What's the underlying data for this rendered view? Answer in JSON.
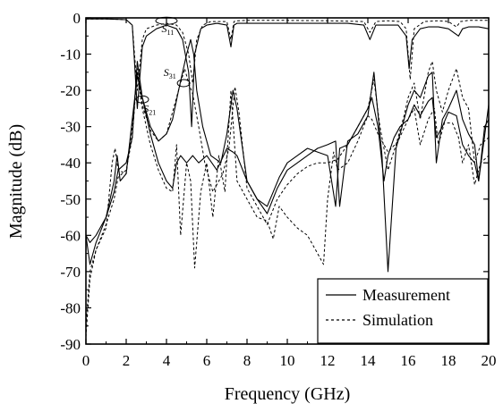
{
  "chart_data": {
    "type": "line",
    "title": "",
    "xlabel": "Frequency (GHz)",
    "ylabel": "Magnitude (dB)",
    "xlim": [
      0,
      20
    ],
    "ylim": [
      -90,
      0
    ],
    "xticks": [
      0,
      2,
      4,
      6,
      8,
      10,
      12,
      14,
      16,
      18,
      20
    ],
    "yticks": [
      0,
      -10,
      -20,
      -30,
      -40,
      -50,
      -60,
      -70,
      -80,
      -90
    ],
    "grid": false,
    "legend_position": "bottom-right",
    "legend": [
      {
        "label": "Measurement",
        "style": "solid"
      },
      {
        "label": "Simulation",
        "style": "dashed"
      }
    ],
    "annotations": [
      {
        "main": "S",
        "sub": "11",
        "x": 4.2,
        "y": -3
      },
      {
        "main": "S",
        "sub": "31",
        "x": 4.3,
        "y": -15
      },
      {
        "main": "S",
        "sub": "21",
        "x": 3.3,
        "y": -25
      }
    ],
    "series": [
      {
        "name": "S11",
        "style": "solid",
        "x": [
          0,
          1,
          2,
          2.3,
          2.55,
          2.8,
          3,
          3.5,
          4,
          4.5,
          4.8,
          5.1,
          5.25,
          5.4,
          5.7,
          6,
          6.5,
          7,
          7.2,
          7.35,
          7.5,
          8,
          9,
          10,
          11,
          12,
          13,
          13.8,
          14.1,
          14.4,
          15,
          15.5,
          15.9,
          16.05,
          16.2,
          16.6,
          17,
          17.5,
          18,
          18.5,
          18.7,
          19,
          19.5,
          20
        ],
        "y": [
          -0.3,
          -0.3,
          -0.5,
          -2,
          -25,
          -8,
          -5,
          -3,
          -2,
          -3,
          -6,
          -15,
          -30,
          -10,
          -3,
          -2,
          -1.5,
          -2,
          -8,
          -2,
          -1.5,
          -1.5,
          -1.5,
          -1.5,
          -1.5,
          -1.5,
          -1.5,
          -2,
          -6,
          -2,
          -2,
          -2,
          -5,
          -14,
          -6,
          -3,
          -2.5,
          -2.5,
          -3,
          -5,
          -3,
          -2.5,
          -2.5,
          -3
        ]
      },
      {
        "name": "S11",
        "style": "dashed",
        "x": [
          0,
          1,
          2,
          2.3,
          2.55,
          2.8,
          3,
          3.5,
          4,
          4.5,
          4.8,
          5.1,
          5.3,
          5.5,
          5.8,
          6.2,
          7,
          7.2,
          7.35,
          7.5,
          8,
          10,
          12,
          13.8,
          14.1,
          14.4,
          15,
          15.6,
          15.9,
          16.1,
          16.3,
          16.8,
          17.5,
          18,
          18.4,
          18.6,
          19,
          20
        ],
        "y": [
          -0.3,
          -0.3,
          -0.5,
          -2,
          -20,
          -6,
          -3,
          -2,
          -1.5,
          -2,
          -4,
          -10,
          -18,
          -6,
          -2,
          -1,
          -1,
          -6,
          -1,
          -0.8,
          -0.7,
          -0.7,
          -0.8,
          -1,
          -4,
          -1,
          -0.8,
          -1,
          -3,
          -17,
          -3,
          -1,
          -0.8,
          -1,
          -2.5,
          -1,
          -0.7,
          -0.7
        ]
      },
      {
        "name": "S21",
        "style": "solid",
        "x": [
          0,
          0.2,
          0.5,
          1,
          1.4,
          1.55,
          1.7,
          2,
          2.3,
          2.55,
          2.8,
          3.2,
          3.6,
          4,
          4.3,
          4.5,
          4.7,
          5,
          5.3,
          5.6,
          6,
          6.5,
          7,
          7.3,
          7.5,
          8,
          8.5,
          9,
          9.3,
          9.6,
          10,
          10.5,
          11,
          11.5,
          12,
          12.4,
          12.6,
          13,
          13.5,
          14,
          14.2,
          14.5,
          14.8,
          15,
          15.3,
          15.6,
          16,
          16.3,
          16.6,
          17,
          17.2,
          17.4,
          17.7,
          18,
          18.4,
          18.7,
          19,
          19.3,
          19.5,
          19.8,
          20
        ],
        "y": [
          -60,
          -62,
          -60,
          -55,
          -45,
          -38,
          -45,
          -43,
          -28,
          -16,
          -22,
          -32,
          -40,
          -45,
          -47,
          -40,
          -38,
          -40,
          -38,
          -40,
          -38,
          -42,
          -36,
          -37,
          -38,
          -45,
          -50,
          -52,
          -48,
          -44,
          -40,
          -38,
          -36,
          -37,
          -38,
          -52,
          -36,
          -35,
          -30,
          -25,
          -22,
          -30,
          -45,
          -38,
          -33,
          -30,
          -28,
          -24,
          -27,
          -23,
          -22,
          -33,
          -30,
          -26,
          -27,
          -35,
          -38,
          -40,
          -45,
          -30,
          -28
        ]
      },
      {
        "name": "S21",
        "style": "dashed",
        "x": [
          0,
          0.2,
          0.5,
          1,
          1.3,
          1.45,
          1.6,
          2,
          2.3,
          2.55,
          2.8,
          3.2,
          3.6,
          4,
          4.3,
          4.5,
          4.7,
          5,
          5.2,
          5.4,
          5.7,
          6,
          6.3,
          6.6,
          6.9,
          7.2,
          7.5,
          8,
          8.5,
          9,
          9.3,
          9.6,
          10,
          10.5,
          11,
          11.5,
          11.8,
          12,
          12.3,
          12.5,
          13,
          13.5,
          14,
          14.2,
          14.5,
          15,
          15.5,
          16,
          16.3,
          16.6,
          17,
          17.3,
          17.5,
          17.8,
          18.2,
          18.5,
          18.7,
          19,
          19.3,
          19.6,
          20
        ],
        "y": [
          -85,
          -70,
          -64,
          -58,
          -40,
          -36,
          -42,
          -43,
          -30,
          -15,
          -25,
          -35,
          -42,
          -47,
          -48,
          -35,
          -60,
          -40,
          -45,
          -69,
          -48,
          -40,
          -55,
          -38,
          -48,
          -20,
          -45,
          -50,
          -55,
          -56,
          -61,
          -52,
          -55,
          -58,
          -60,
          -65,
          -68,
          -50,
          -37,
          -42,
          -40,
          -34,
          -27,
          -28,
          -32,
          -37,
          -34,
          -28,
          -25,
          -35,
          -28,
          -25,
          -35,
          -29,
          -29,
          -33,
          -40,
          -35,
          -46,
          -40,
          -38
        ]
      },
      {
        "name": "S31",
        "style": "solid",
        "x": [
          0,
          0.2,
          0.5,
          1,
          1.4,
          1.6,
          2,
          2.3,
          2.55,
          2.8,
          3.2,
          3.6,
          4,
          4.3,
          4.6,
          5,
          5.2,
          5.35,
          5.5,
          5.8,
          6.2,
          6.7,
          7,
          7.3,
          7.5,
          8,
          8.5,
          9,
          9.5,
          10,
          10.5,
          11,
          11.5,
          12,
          12.4,
          12.6,
          13,
          13.5,
          14,
          14.3,
          14.7,
          15,
          15.4,
          15.8,
          16,
          16.3,
          16.6,
          17,
          17.2,
          17.4,
          17.7,
          18,
          18.4,
          18.7,
          19,
          19.3,
          19.5,
          20
        ],
        "y": [
          -60,
          -68,
          -62,
          -55,
          -48,
          -42,
          -40,
          -33,
          -12,
          -22,
          -30,
          -34,
          -32,
          -28,
          -20,
          -10,
          -6,
          -10,
          -20,
          -30,
          -38,
          -40,
          -32,
          -20,
          -25,
          -45,
          -50,
          -54,
          -47,
          -42,
          -40,
          -38,
          -36,
          -35,
          -34,
          -52,
          -34,
          -32,
          -27,
          -15,
          -38,
          -70,
          -36,
          -28,
          -24,
          -20,
          -22,
          -16,
          -15,
          -40,
          -28,
          -25,
          -20,
          -28,
          -32,
          -35,
          -45,
          -24
        ]
      },
      {
        "name": "S31",
        "style": "dashed",
        "x": [
          0,
          0.2,
          0.5,
          1,
          1.4,
          1.6,
          2,
          2.3,
          2.55,
          2.8,
          3.2,
          3.6,
          4,
          4.3,
          4.6,
          4.9,
          5.1,
          5.3,
          5.6,
          5.9,
          6.3,
          6.8,
          7.1,
          7.4,
          7.6,
          8,
          8.5,
          9,
          9.5,
          10,
          10.5,
          11,
          11.5,
          12,
          12.5,
          13,
          13.5,
          14,
          14.3,
          14.6,
          15,
          15.4,
          15.8,
          16,
          16.3,
          16.6,
          17,
          17.2,
          17.4,
          17.7,
          18,
          18.4,
          18.7,
          19,
          19.3,
          19.6,
          20
        ],
        "y": [
          -88,
          -72,
          -64,
          -57,
          -50,
          -44,
          -42,
          -33,
          -14,
          -24,
          -31,
          -34,
          -32,
          -26,
          -20,
          -14,
          -18,
          -21,
          -30,
          -40,
          -48,
          -43,
          -36,
          -19,
          -26,
          -47,
          -52,
          -57,
          -50,
          -46,
          -43,
          -41,
          -40,
          -40,
          -39,
          -35,
          -30,
          -25,
          -17,
          -30,
          -42,
          -35,
          -27,
          -22,
          -18,
          -28,
          -15,
          -12,
          -20,
          -26,
          -20,
          -14,
          -22,
          -25,
          -40,
          -35,
          -33
        ]
      }
    ]
  }
}
